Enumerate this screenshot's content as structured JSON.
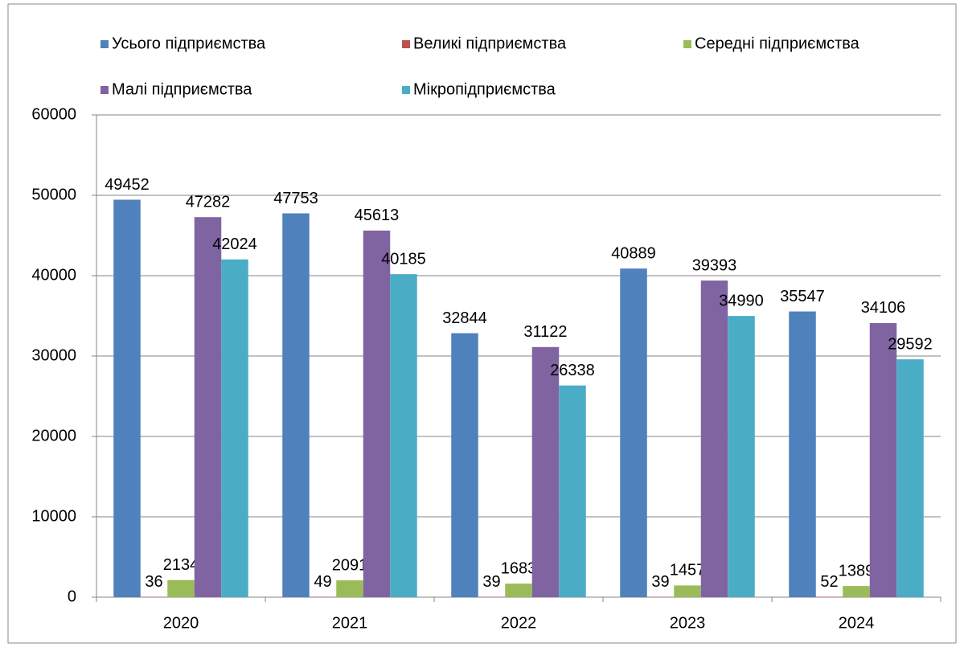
{
  "chart_data": {
    "type": "bar",
    "categories": [
      "2020",
      "2021",
      "2022",
      "2023",
      "2024"
    ],
    "series": [
      {
        "name": "Усього підприємства",
        "color": "#4f81bd",
        "values": [
          49452,
          47753,
          32844,
          40889,
          35547
        ]
      },
      {
        "name": "Великі підприємства",
        "color": "#c0504d",
        "values": [
          36,
          49,
          39,
          39,
          52
        ]
      },
      {
        "name": "Середні підприємства",
        "color": "#9bbb59",
        "values": [
          2134,
          2091,
          1683,
          1457,
          1389
        ]
      },
      {
        "name": "Малі підприємства",
        "color": "#8064a2",
        "values": [
          47282,
          45613,
          31122,
          39393,
          34106
        ]
      },
      {
        "name": "Мікропідприємства",
        "color": "#4bacc6",
        "values": [
          42024,
          40185,
          26338,
          34990,
          29592
        ]
      }
    ],
    "ylim": [
      0,
      60000
    ],
    "yticks": [
      0,
      10000,
      20000,
      30000,
      40000,
      50000,
      60000
    ],
    "grid": true,
    "legend": "top"
  }
}
